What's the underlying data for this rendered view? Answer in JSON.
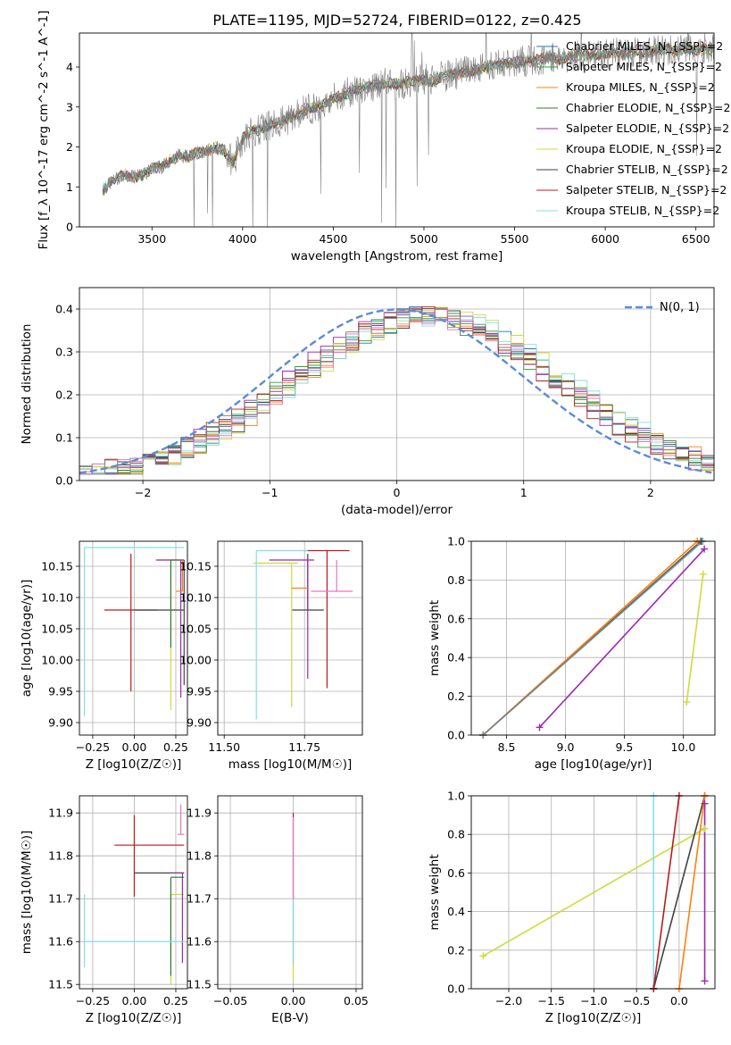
{
  "figure": {
    "title": "PLATE=1195, MJD=52724, FIBERID=0122, z=0.425"
  },
  "chart_data": [
    {
      "id": "spectrum",
      "type": "line",
      "xlabel": "wavelength [Angstrom, rest frame]",
      "ylabel": "Flux [f_λ 10^-17 erg cm^-2 s^-1 A^-1]",
      "xlim": [
        3100,
        6600
      ],
      "ylim": [
        0,
        4.85
      ],
      "xticks": [
        3500,
        4000,
        4500,
        5000,
        5500,
        6000,
        6500
      ],
      "yticks": [
        0,
        1,
        2,
        3,
        4
      ],
      "grid": false,
      "legend_position": "top-right",
      "data_color": "#808080",
      "data_points": [
        [
          3228,
          0.9
        ],
        [
          3260,
          1.05
        ],
        [
          3300,
          1.2
        ],
        [
          3350,
          1.3
        ],
        [
          3400,
          1.25
        ],
        [
          3450,
          1.3
        ],
        [
          3500,
          1.45
        ],
        [
          3550,
          1.5
        ],
        [
          3600,
          1.65
        ],
        [
          3650,
          1.8
        ],
        [
          3700,
          1.75
        ],
        [
          3750,
          1.85
        ],
        [
          3800,
          1.9
        ],
        [
          3850,
          2.0
        ],
        [
          3900,
          1.9
        ],
        [
          3950,
          1.6
        ],
        [
          4000,
          2.2
        ],
        [
          4050,
          2.4
        ],
        [
          4100,
          2.45
        ],
        [
          4150,
          2.55
        ],
        [
          4200,
          2.6
        ],
        [
          4250,
          2.7
        ],
        [
          4300,
          2.8
        ],
        [
          4350,
          2.95
        ],
        [
          4400,
          3.0
        ],
        [
          4450,
          3.05
        ],
        [
          4500,
          3.2
        ],
        [
          4550,
          3.3
        ],
        [
          4600,
          3.4
        ],
        [
          4650,
          3.45
        ],
        [
          4700,
          3.5
        ],
        [
          4750,
          3.55
        ],
        [
          4800,
          3.6
        ],
        [
          4850,
          3.55
        ],
        [
          4900,
          3.6
        ],
        [
          4950,
          3.65
        ],
        [
          5000,
          3.7
        ],
        [
          5050,
          3.65
        ],
        [
          5100,
          3.75
        ],
        [
          5150,
          3.8
        ],
        [
          5200,
          3.85
        ],
        [
          5250,
          3.9
        ],
        [
          5300,
          3.95
        ],
        [
          5350,
          4.0
        ],
        [
          5400,
          4.05
        ],
        [
          5450,
          4.1
        ],
        [
          5500,
          4.1
        ],
        [
          5550,
          4.15
        ],
        [
          5600,
          4.15
        ],
        [
          5650,
          4.2
        ],
        [
          5700,
          4.25
        ],
        [
          5750,
          4.2
        ],
        [
          5800,
          4.25
        ],
        [
          5850,
          4.3
        ],
        [
          5900,
          4.3
        ],
        [
          5950,
          4.3
        ],
        [
          6000,
          4.35
        ],
        [
          6050,
          4.35
        ],
        [
          6100,
          4.3
        ],
        [
          6150,
          4.4
        ],
        [
          6200,
          4.35
        ],
        [
          6250,
          4.4
        ],
        [
          6300,
          4.4
        ],
        [
          6350,
          4.45
        ],
        [
          6400,
          4.4
        ],
        [
          6450,
          4.5
        ],
        [
          6500,
          4.4
        ],
        [
          6550,
          4.45
        ],
        [
          6600,
          4.45
        ]
      ],
      "series": [
        {
          "label": "Chabrier MILES, N_{SSP}=2",
          "color": "#1f77b4"
        },
        {
          "label": "Salpeter MILES, N_{SSP}=2",
          "color": "#2ca02c"
        },
        {
          "label": "Kroupa MILES, N_{SSP}=2",
          "color": "#ff7f0e"
        },
        {
          "label": "Chabrier ELODIE, N_{SSP}=2",
          "color": "#2e7d32"
        },
        {
          "label": "Salpeter ELODIE, N_{SSP}=2",
          "color": "#9c27b0"
        },
        {
          "label": "Kroupa ELODIE, N_{SSP}=2",
          "color": "#cddc39"
        },
        {
          "label": "Chabrier STELIB, N_{SSP}=2",
          "color": "#424242"
        },
        {
          "label": "Salpeter STELIB, N_{SSP}=2",
          "color": "#b71c1c"
        },
        {
          "label": "Kroupa STELIB, N_{SSP}=2",
          "color": "#80deea"
        }
      ]
    },
    {
      "id": "residual-histogram",
      "type": "bar",
      "xlabel": "(data-model)/error",
      "ylabel": "Normed distribution",
      "xlim": [
        -2.5,
        2.5
      ],
      "ylim": [
        0,
        0.45
      ],
      "xticks": [
        -2,
        -1,
        0,
        1,
        2
      ],
      "yticks": [
        0.0,
        0.1,
        0.2,
        0.3,
        0.4
      ],
      "grid": true,
      "legend_position": "top-right",
      "reference_curve": {
        "label": "N(0, 1)",
        "color": "#5b8bd9",
        "mean": 0,
        "sigma": 1
      },
      "bin_width": 0.1,
      "series_colors": [
        "#1f77b4",
        "#2ca02c",
        "#ff7f0e",
        "#2e7d32",
        "#9c27b0",
        "#cddc39",
        "#424242",
        "#b71c1c",
        "#80deea",
        "#e377c2",
        "#7f7f7f"
      ]
    },
    {
      "id": "age-vs-metallicity",
      "type": "scatter",
      "xlabel": "Z [log10(Z/Z☉)]",
      "ylabel": "age [log10(age/yr)]",
      "xlim": [
        -0.33,
        0.32
      ],
      "ylim": [
        9.88,
        10.19
      ],
      "xticks": [
        -0.25,
        0.0,
        0.25
      ],
      "yticks": [
        9.9,
        9.95,
        10.0,
        10.05,
        10.1,
        10.15
      ],
      "grid": true,
      "points": [
        {
          "x": -0.02,
          "y": 10.08,
          "xerr": 0.16,
          "yerr": [
            0.13,
            0.09
          ],
          "color": "#b71c1c"
        },
        {
          "x": 0.0,
          "y": 10.08,
          "xerr": [
            0.0,
            0.3
          ],
          "yerr": [
            0.0,
            0.0
          ],
          "color": "#424242"
        },
        {
          "x": 0.22,
          "y": 10.16,
          "xerr": [
            0.08,
            0.08
          ],
          "yerr": [
            0.24,
            0.0
          ],
          "color": "#cddc39"
        },
        {
          "x": 0.28,
          "y": 10.16,
          "xerr": [
            0.15,
            0.02
          ],
          "yerr": [
            0.22,
            0.0
          ],
          "color": "#9c27b0"
        },
        {
          "x": 0.29,
          "y": 10.11,
          "xerr": [
            0.04,
            0.0
          ],
          "yerr": [
            0.0,
            0.05
          ],
          "color": "#ff7f0e"
        },
        {
          "x": 0.22,
          "y": 10.16,
          "xerr": [
            0.0,
            0.05
          ],
          "yerr": [
            0.14,
            0.0
          ],
          "color": "#2e7d32"
        },
        {
          "x": 0.3,
          "y": 10.16,
          "xerr": [
            0.0,
            0.0
          ],
          "yerr": [
            0.2,
            0.0
          ],
          "color": "#424242"
        },
        {
          "x": -0.3,
          "y": 10.18,
          "xerr": [
            0.0,
            0.6
          ],
          "yerr": [
            0.27,
            0.0
          ],
          "color": "#80deea"
        }
      ]
    },
    {
      "id": "age-vs-mass",
      "type": "scatter",
      "xlabel": "mass [log10(M/M☉)]",
      "ylabel": "",
      "xlim": [
        11.48,
        11.93
      ],
      "ylim": [
        9.88,
        10.19
      ],
      "xticks": [
        11.5,
        11.75
      ],
      "yticks": [
        9.9,
        9.95,
        10.0,
        10.05,
        10.1,
        10.15
      ],
      "grid": true,
      "points": [
        {
          "x": 11.82,
          "y": 10.175,
          "xerr": [
            0.07,
            0.07
          ],
          "yerr": [
            0.22,
            0.0
          ],
          "color": "#b71c1c"
        },
        {
          "x": 11.76,
          "y": 10.08,
          "xerr": [
            0.05,
            0.05
          ],
          "yerr": [
            0.0,
            0.09
          ],
          "color": "#424242"
        },
        {
          "x": 11.71,
          "y": 10.155,
          "xerr": [
            0.12,
            0.02
          ],
          "yerr": [
            0.23,
            0.0
          ],
          "color": "#cddc39"
        },
        {
          "x": 11.76,
          "y": 10.16,
          "xerr": [
            0.12,
            0.02
          ],
          "yerr": [
            0.19,
            0.0
          ],
          "color": "#9c27b0"
        },
        {
          "x": 11.85,
          "y": 10.11,
          "xerr": [
            0.08,
            0.05
          ],
          "yerr": [
            0.0,
            0.05
          ],
          "color": "#e377c2"
        },
        {
          "x": 11.76,
          "y": 10.115,
          "xerr": [
            0.05,
            0.0
          ],
          "yerr": [
            0.0,
            0.0
          ],
          "color": "#ff7f0e"
        },
        {
          "x": 11.6,
          "y": 10.175,
          "xerr": [
            0.0,
            0.16
          ],
          "yerr": [
            0.27,
            0.0
          ],
          "color": "#80deea"
        }
      ]
    },
    {
      "id": "mass-weight-vs-age",
      "type": "line",
      "xlabel": "age [log10(age/yr)]",
      "ylabel": "mass weight",
      "xlim": [
        8.2,
        10.27
      ],
      "ylim": [
        0,
        1
      ],
      "xticks": [
        8.5,
        9.0,
        9.5,
        10.0
      ],
      "yticks": [
        0.0,
        0.2,
        0.4,
        0.6,
        0.8,
        1.0
      ],
      "grid": true,
      "series": [
        {
          "color": "#9c27b0",
          "points": [
            [
              8.78,
              0.04
            ],
            [
              10.18,
              0.96
            ]
          ]
        },
        {
          "color": "#cddc39",
          "points": [
            [
              10.03,
              0.17
            ],
            [
              10.17,
              0.83
            ]
          ]
        },
        {
          "color": "#424242",
          "points": [
            [
              8.3,
              0.0
            ],
            [
              10.15,
              1.0
            ]
          ]
        },
        {
          "color": "#ff7f0e",
          "points": [
            [
              8.3,
              0.0
            ],
            [
              10.12,
              1.0
            ]
          ]
        },
        {
          "color": "#80deea",
          "points": [
            [
              8.3,
              0.0
            ],
            [
              10.17,
              1.0
            ]
          ]
        },
        {
          "color": "#7f7f7f",
          "points": [
            [
              8.3,
              0.0
            ],
            [
              10.16,
              1.0
            ]
          ]
        }
      ]
    },
    {
      "id": "mass-vs-metallicity",
      "type": "scatter",
      "xlabel": "Z [log10(Z/Z☉)]",
      "ylabel": "mass [log10(M/M☉)]",
      "xlim": [
        -0.33,
        0.32
      ],
      "ylim": [
        11.49,
        11.94
      ],
      "xticks": [
        -0.25,
        0.0,
        0.25
      ],
      "yticks": [
        11.5,
        11.6,
        11.7,
        11.8,
        11.9
      ],
      "grid": true,
      "points": [
        {
          "x": 0.0,
          "y": 11.825,
          "xerr": [
            0.12,
            0.3
          ],
          "yerr": [
            0.12,
            0.07
          ],
          "color": "#b71c1c"
        },
        {
          "x": 0.0,
          "y": 11.76,
          "xerr": [
            0.0,
            0.3
          ],
          "yerr": [
            0.0,
            0.0
          ],
          "color": "#424242"
        },
        {
          "x": 0.22,
          "y": 11.71,
          "xerr": [
            0.0,
            0.08
          ],
          "yerr": [
            0.21,
            0.0
          ],
          "color": "#cddc39"
        },
        {
          "x": 0.28,
          "y": 11.85,
          "xerr": [
            0.02,
            0.02
          ],
          "yerr": [
            0.0,
            0.07
          ],
          "color": "#e377c2"
        },
        {
          "x": 0.29,
          "y": 11.76,
          "xerr": [
            0.07,
            0.0
          ],
          "yerr": [
            0.21,
            0.0
          ],
          "color": "#9c27b0"
        },
        {
          "x": 0.22,
          "y": 11.75,
          "xerr": [
            0.0,
            0.08
          ],
          "yerr": [
            0.23,
            0.0
          ],
          "color": "#2e7d32"
        },
        {
          "x": -0.3,
          "y": 11.6,
          "xerr": [
            0.0,
            0.6
          ],
          "yerr": [
            0.06,
            0.11
          ],
          "color": "#80deea"
        }
      ]
    },
    {
      "id": "mass-vs-extinction",
      "type": "scatter",
      "xlabel": "E(B-V)",
      "ylabel": "",
      "xlim": [
        -0.06,
        0.055
      ],
      "ylim": [
        11.49,
        11.94
      ],
      "xticks": [
        -0.05,
        0.0,
        0.05
      ],
      "yticks": [
        11.5,
        11.6,
        11.7,
        11.8,
        11.9
      ],
      "grid": true,
      "points": [
        {
          "x": 0.0,
          "y": 11.82,
          "yerr": [
            0.12,
            0.08
          ],
          "color": "#b71c1c"
        },
        {
          "x": 0.0,
          "y": 11.76,
          "yerr": [
            0.22,
            0.13
          ],
          "color": "#e377c2"
        },
        {
          "x": 0.0,
          "y": 11.62,
          "yerr": [
            0.11,
            0.08
          ],
          "color": "#cddc39"
        },
        {
          "x": 0.0,
          "y": 11.6,
          "yerr": [
            0.05,
            0.1
          ],
          "color": "#80deea"
        }
      ]
    },
    {
      "id": "mass-weight-vs-metallicity",
      "type": "line",
      "xlabel": "Z [log10(Z/Z☉)]",
      "ylabel": "mass weight",
      "xlim": [
        -2.44,
        0.42
      ],
      "ylim": [
        0,
        1
      ],
      "xticks": [
        -2.0,
        -1.5,
        -1.0,
        -0.5,
        0.0
      ],
      "yticks": [
        0.0,
        0.2,
        0.4,
        0.6,
        0.8,
        1.0
      ],
      "grid": true,
      "series": [
        {
          "color": "#cddc39",
          "points": [
            [
              -2.3,
              0.17
            ],
            [
              0.3,
              0.83
            ]
          ]
        },
        {
          "color": "#80deea",
          "points": [
            [
              -0.3,
              0.0
            ],
            [
              -0.3,
              1.0
            ]
          ]
        },
        {
          "color": "#424242",
          "points": [
            [
              -0.3,
              0.0
            ],
            [
              0.3,
              1.0
            ]
          ]
        },
        {
          "color": "#b71c1c",
          "points": [
            [
              -0.3,
              0.0
            ],
            [
              0.0,
              1.0
            ]
          ]
        },
        {
          "color": "#ff7f0e",
          "points": [
            [
              0.0,
              0.0
            ],
            [
              0.3,
              1.0
            ]
          ]
        },
        {
          "color": "#9c27b0",
          "points": [
            [
              0.3,
              0.04
            ],
            [
              0.3,
              0.96
            ]
          ]
        }
      ]
    }
  ]
}
